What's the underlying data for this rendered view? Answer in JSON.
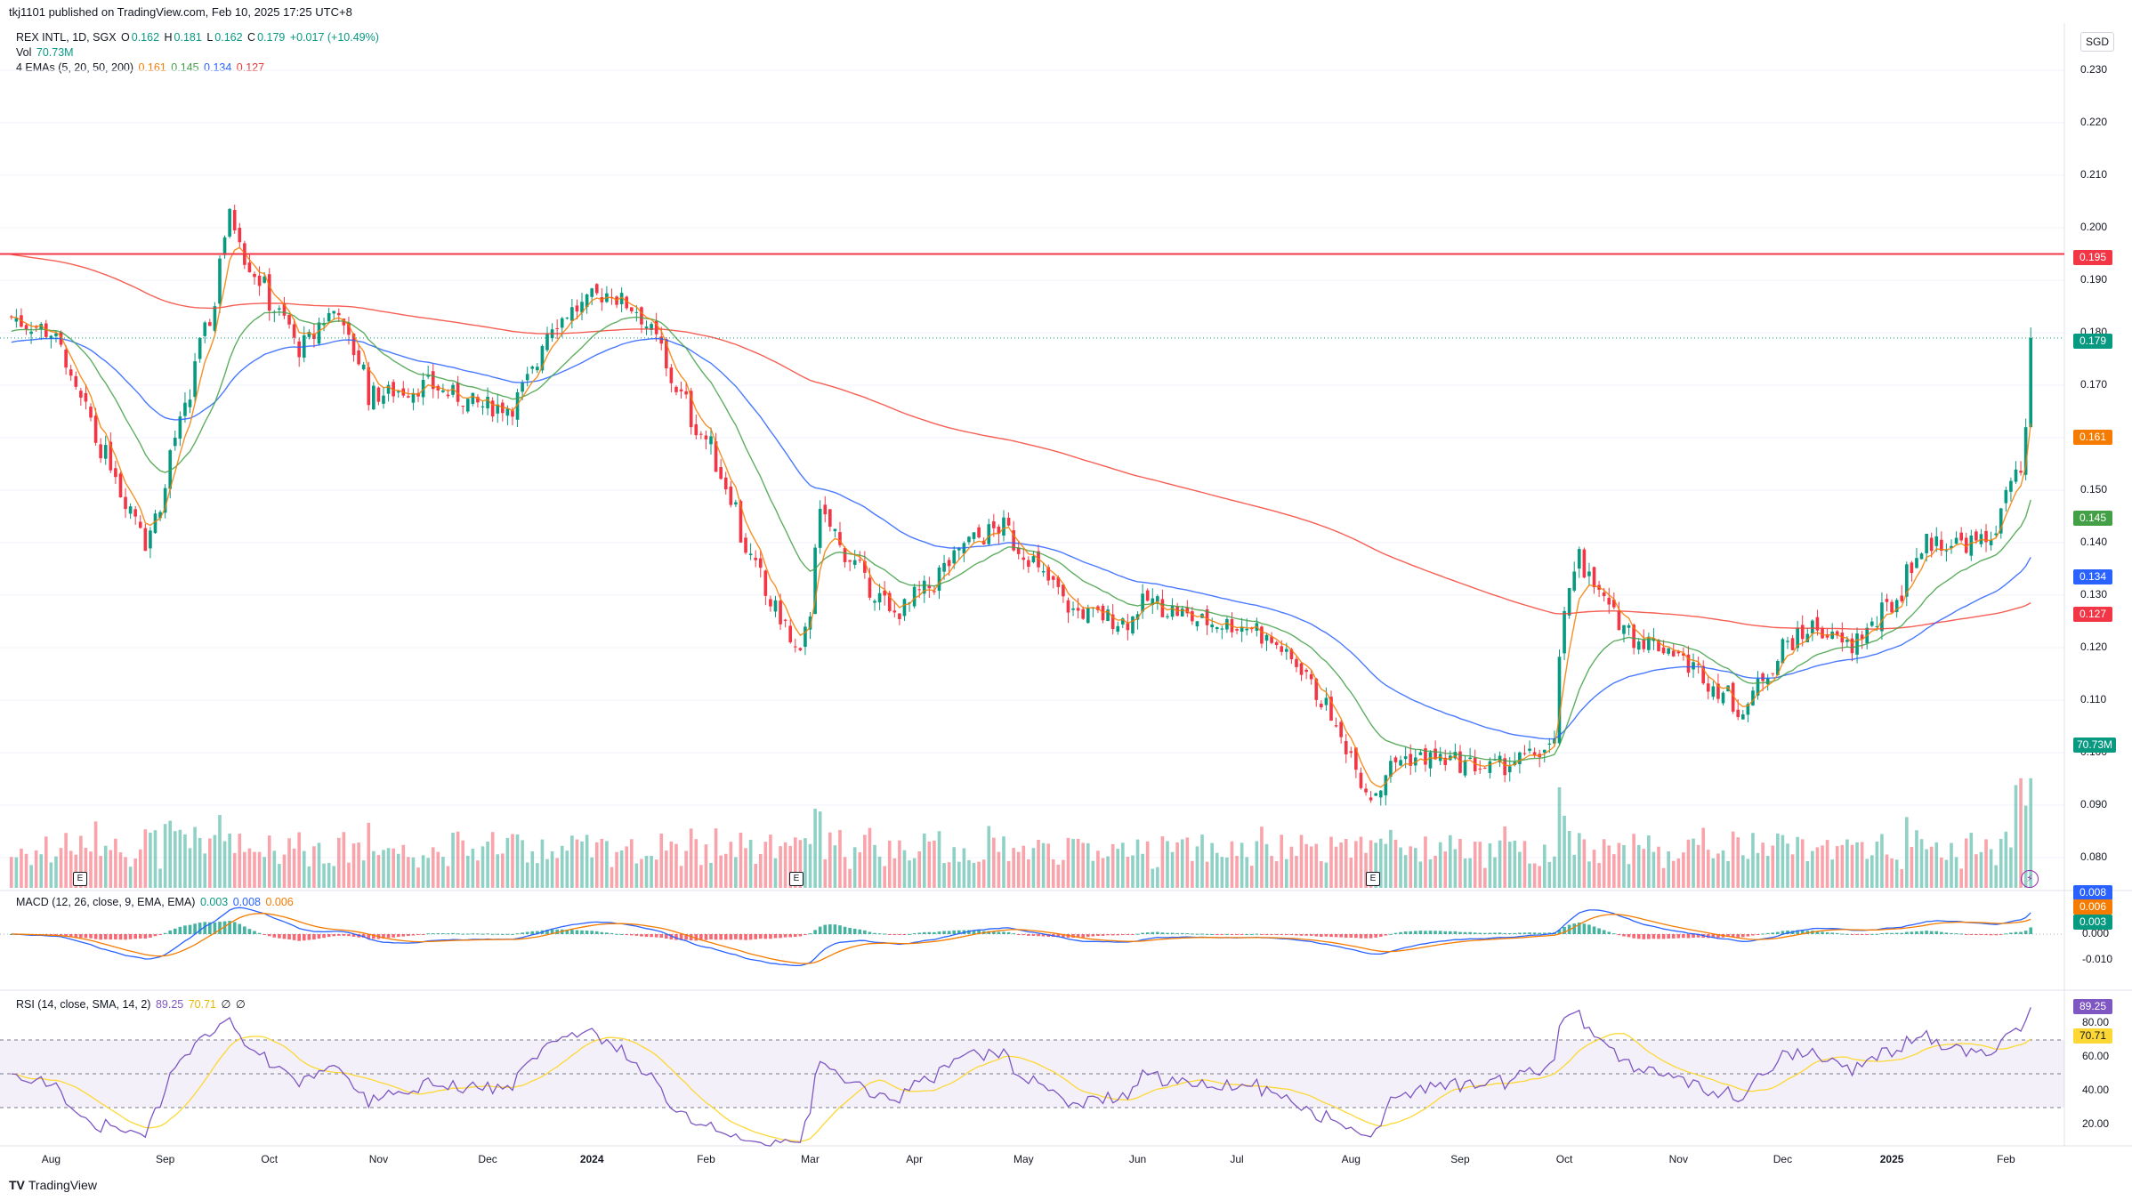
{
  "header": {
    "publish_line": "tkj1101 published on TradingView.com, Feb 10, 2025 17:25 UTC+8",
    "symbol": "REX INTL, 1D, SGX",
    "o_label": "O",
    "o_value": "0.162",
    "h_label": "H",
    "h_value": "0.181",
    "l_label": "L",
    "l_value": "0.162",
    "c_label": "C",
    "c_value": "0.179",
    "change": "+0.017 (+10.49%)",
    "vol_label": "Vol",
    "vol_value": "70.73M",
    "ema_label": "4 EMAs (5, 20, 50, 200)",
    "ema5": "0.161",
    "ema20": "0.145",
    "ema50": "0.134",
    "ema200": "0.127",
    "macd_label": "MACD (12, 26, close, 9, EMA, EMA)",
    "macd_hist": "0.003",
    "macd_line": "0.008",
    "macd_signal": "0.006",
    "rsi_label": "RSI (14, close, SMA, 14, 2)",
    "rsi_value": "89.25",
    "rsi_sma": "70.71",
    "rsi_n1": "∅",
    "rsi_n2": "∅"
  },
  "currency": "SGD",
  "price_axis": [
    "0.230",
    "0.220",
    "0.210",
    "0.200",
    "0.190",
    "0.180",
    "0.170",
    "0.160",
    "0.150",
    "0.140",
    "0.130",
    "0.120",
    "0.110",
    "0.100",
    "0.090",
    "0.080"
  ],
  "macd_axis": [
    "0.000",
    "-0.010"
  ],
  "rsi_axis": [
    "80.00",
    "60.00",
    "40.00",
    "20.00"
  ],
  "x_axis": [
    "Aug",
    "Sep",
    "Oct",
    "Nov",
    "Dec",
    "2024",
    "Feb",
    "Mar",
    "Apr",
    "May",
    "Jun",
    "Jul",
    "Aug",
    "Sep",
    "Oct",
    "Nov",
    "Dec",
    "2025",
    "Feb"
  ],
  "tags": {
    "resistance": "0.195",
    "close": "0.179",
    "ema5": "0.161",
    "ema20": "0.145",
    "ema50": "0.134",
    "ema200": "0.127",
    "volume": "70.73M",
    "macd_line": "0.008",
    "macd_signal": "0.006",
    "macd_hist": "0.003",
    "rsi": "89.25",
    "rsi_sma": "70.71"
  },
  "earnings_marker": "E",
  "brand": "TradingView",
  "colors": {
    "up": "#089981",
    "down": "#f23645",
    "ema5": "#f57c00",
    "ema20": "#43a047",
    "ema50": "#2962ff",
    "ema200": "#f44336",
    "resistance": "#f23645",
    "rsi": "#7e57c2",
    "rsi_sma": "#fdd835"
  },
  "chart_data": {
    "type": "candlestick",
    "title": "REX INTL, 1D, SGX",
    "ylim": [
      0.075,
      0.235
    ],
    "resistance_level": 0.195,
    "anchors": [
      {
        "date": "2023-07-20",
        "close": 0.183
      },
      {
        "date": "2023-08-01",
        "close": 0.18
      },
      {
        "date": "2023-08-10",
        "close": 0.165
      },
      {
        "date": "2023-08-28",
        "close": 0.14
      },
      {
        "date": "2023-09-05",
        "close": 0.16
      },
      {
        "date": "2023-09-15",
        "close": 0.185
      },
      {
        "date": "2023-09-20",
        "close": 0.202
      },
      {
        "date": "2023-09-28",
        "close": 0.19
      },
      {
        "date": "2023-10-10",
        "close": 0.177
      },
      {
        "date": "2023-10-20",
        "close": 0.185
      },
      {
        "date": "2023-10-30",
        "close": 0.168
      },
      {
        "date": "2023-11-15",
        "close": 0.17
      },
      {
        "date": "2023-11-30",
        "close": 0.166
      },
      {
        "date": "2023-12-10",
        "close": 0.166
      },
      {
        "date": "2023-12-20",
        "close": 0.182
      },
      {
        "date": "2024-01-05",
        "close": 0.188
      },
      {
        "date": "2024-01-15",
        "close": 0.183
      },
      {
        "date": "2024-01-25",
        "close": 0.168
      },
      {
        "date": "2024-02-05",
        "close": 0.155
      },
      {
        "date": "2024-02-15",
        "close": 0.135
      },
      {
        "date": "2024-02-28",
        "close": 0.118
      },
      {
        "date": "2024-03-05",
        "close": 0.145
      },
      {
        "date": "2024-03-15",
        "close": 0.135
      },
      {
        "date": "2024-03-25",
        "close": 0.126
      },
      {
        "date": "2024-04-05",
        "close": 0.132
      },
      {
        "date": "2024-04-15",
        "close": 0.14
      },
      {
        "date": "2024-04-25",
        "close": 0.143
      },
      {
        "date": "2024-05-05",
        "close": 0.135
      },
      {
        "date": "2024-05-15",
        "close": 0.127
      },
      {
        "date": "2024-05-30",
        "close": 0.125
      },
      {
        "date": "2024-06-05",
        "close": 0.129
      },
      {
        "date": "2024-06-20",
        "close": 0.125
      },
      {
        "date": "2024-07-05",
        "close": 0.124
      },
      {
        "date": "2024-07-20",
        "close": 0.115
      },
      {
        "date": "2024-08-01",
        "close": 0.1
      },
      {
        "date": "2024-08-07",
        "close": 0.092
      },
      {
        "date": "2024-08-15",
        "close": 0.099
      },
      {
        "date": "2024-08-25",
        "close": 0.099
      },
      {
        "date": "2024-09-10",
        "close": 0.097
      },
      {
        "date": "2024-09-20",
        "close": 0.099
      },
      {
        "date": "2024-09-27",
        "close": 0.101
      },
      {
        "date": "2024-10-01",
        "close": 0.125
      },
      {
        "date": "2024-10-04",
        "close": 0.14
      },
      {
        "date": "2024-10-10",
        "close": 0.13
      },
      {
        "date": "2024-10-20",
        "close": 0.122
      },
      {
        "date": "2024-10-30",
        "close": 0.12
      },
      {
        "date": "2024-11-10",
        "close": 0.114
      },
      {
        "date": "2024-11-20",
        "close": 0.108
      },
      {
        "date": "2024-12-01",
        "close": 0.12
      },
      {
        "date": "2024-12-10",
        "close": 0.124
      },
      {
        "date": "2024-12-20",
        "close": 0.12
      },
      {
        "date": "2025-01-01",
        "close": 0.128
      },
      {
        "date": "2025-01-10",
        "close": 0.14
      },
      {
        "date": "2025-01-20",
        "close": 0.14
      },
      {
        "date": "2025-01-28",
        "close": 0.14
      },
      {
        "date": "2025-02-03",
        "close": 0.15
      },
      {
        "date": "2025-02-06",
        "close": 0.153
      },
      {
        "date": "2025-02-07",
        "close": 0.162
      },
      {
        "date": "2025-02-10",
        "close": 0.179
      }
    ],
    "last_bar": {
      "open": 0.162,
      "high": 0.181,
      "low": 0.162,
      "close": 0.179,
      "volume": "70.73M"
    },
    "ema_last": {
      "ema5": 0.161,
      "ema20": 0.145,
      "ema50": 0.134,
      "ema200": 0.127
    },
    "macd_last": {
      "macd": 0.008,
      "signal": 0.006,
      "histogram": 0.003
    },
    "rsi_last": {
      "rsi": 89.25,
      "sma": 70.71
    },
    "rsi_levels": [
      70,
      50,
      30
    ]
  }
}
